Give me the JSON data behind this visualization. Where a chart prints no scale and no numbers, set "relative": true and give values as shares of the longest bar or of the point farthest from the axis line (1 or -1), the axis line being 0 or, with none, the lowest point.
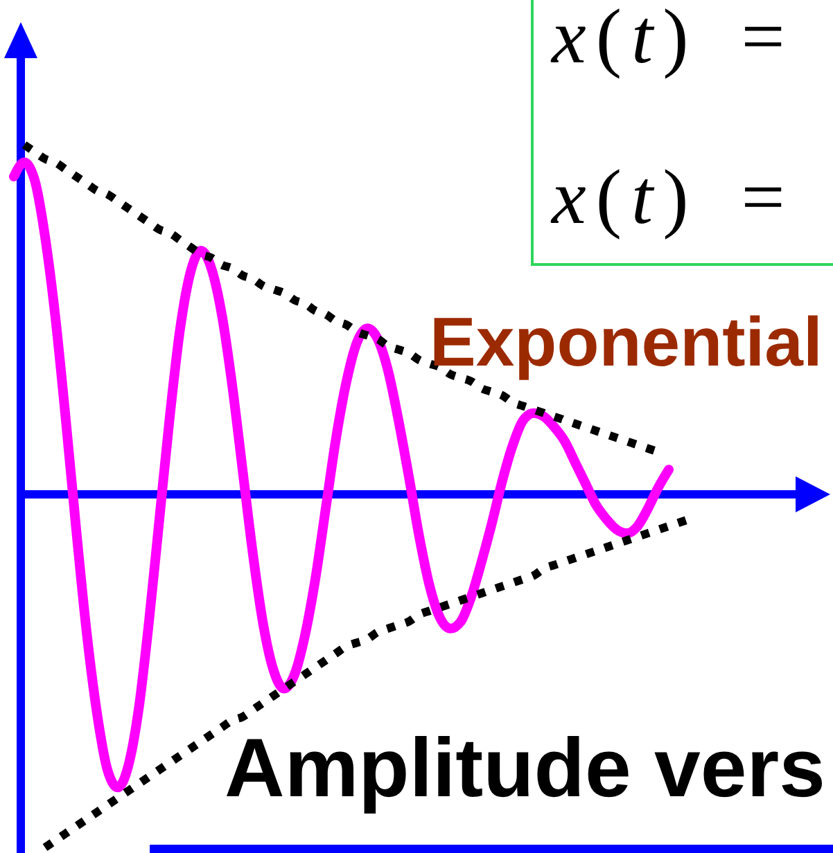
{
  "chart_data": {
    "type": "line",
    "relative": true,
    "categories": [
      null,
      null,
      null,
      null,
      null,
      null,
      null,
      null,
      null,
      null,
      null,
      null,
      null,
      null,
      null,
      null,
      null,
      null,
      null,
      null,
      null,
      null,
      null,
      null,
      null,
      null,
      null,
      null,
      null,
      null,
      null,
      null,
      null,
      null,
      null,
      null,
      null,
      null,
      null,
      null,
      null,
      null,
      null,
      null,
      null,
      null,
      null,
      null,
      null,
      null,
      null,
      null,
      null,
      null,
      null,
      null,
      null,
      null,
      null,
      null,
      null,
      null,
      null,
      null,
      null,
      null
    ],
    "series": [
      {
        "color": "#ff00ff",
        "values": [
          0.9,
          0.94,
          0.89,
          0.73,
          0.5,
          0.21,
          -0.1,
          -0.39,
          -0.62,
          -0.78,
          -0.83,
          -0.77,
          -0.61,
          -0.36,
          -0.07,
          0.22,
          0.47,
          0.63,
          0.69,
          0.64,
          0.51,
          0.31,
          0.07,
          -0.17,
          -0.37,
          -0.5,
          -0.55,
          -0.51,
          -0.4,
          -0.24,
          -0.04,
          0.16,
          0.32,
          0.43,
          0.47,
          0.44,
          0.35,
          0.21,
          0.05,
          -0.12,
          -0.26,
          -0.35,
          -0.38,
          -0.36,
          -0.29,
          -0.19,
          -0.08,
          0.04,
          0.14,
          0.21,
          0.23,
          0.22,
          0.19,
          0.15,
          0.09,
          0.03,
          -0.03,
          -0.07,
          -0.1,
          -0.11,
          -0.09,
          -0.04,
          0.02,
          0.07,
          null,
          null
        ]
      },
      {
        "color": "#000000",
        "line_style": "dotted",
        "values": [
          null,
          0.99,
          0.97,
          0.95,
          0.94,
          0.92,
          0.9,
          0.88,
          0.86,
          0.85,
          0.83,
          0.81,
          0.79,
          0.77,
          0.75,
          0.74,
          0.72,
          0.7,
          0.68,
          0.67,
          0.65,
          0.64,
          0.62,
          0.61,
          0.59,
          0.58,
          0.57,
          0.55,
          0.54,
          0.52,
          0.51,
          0.49,
          0.48,
          0.46,
          0.45,
          0.44,
          0.42,
          0.41,
          0.4,
          0.38,
          0.37,
          0.36,
          0.34,
          0.33,
          0.32,
          0.3,
          0.29,
          0.28,
          0.26,
          0.25,
          0.24,
          0.23,
          0.22,
          0.21,
          0.2,
          0.19,
          0.18,
          0.17,
          0.16,
          0.15,
          0.14,
          0.13,
          0.12,
          null,
          null,
          null
        ]
      },
      {
        "color": "#000000",
        "line_style": "dotted",
        "values": [
          null,
          null,
          null,
          -1.0,
          -0.98,
          -0.96,
          -0.94,
          -0.92,
          -0.9,
          -0.88,
          -0.86,
          -0.84,
          -0.82,
          -0.8,
          -0.78,
          -0.76,
          -0.74,
          -0.72,
          -0.7,
          -0.68,
          -0.66,
          -0.64,
          -0.63,
          -0.61,
          -0.59,
          -0.57,
          -0.55,
          -0.53,
          -0.51,
          -0.49,
          -0.47,
          -0.45,
          -0.43,
          -0.42,
          -0.41,
          -0.39,
          -0.38,
          -0.37,
          -0.36,
          -0.34,
          -0.33,
          -0.32,
          -0.31,
          -0.3,
          -0.29,
          -0.28,
          -0.27,
          -0.26,
          -0.25,
          -0.24,
          -0.23,
          -0.21,
          -0.2,
          -0.19,
          -0.18,
          -0.17,
          -0.16,
          -0.15,
          -0.14,
          -0.13,
          -0.12,
          -0.11,
          -0.1,
          -0.09,
          -0.08,
          -0.07
        ]
      }
    ],
    "ref_lines": [
      {
        "axis": "y",
        "value": 0,
        "color": "#0000ff"
      }
    ],
    "annotations": [
      "x(t) =",
      "x(t) =",
      "Exponential",
      "Amplitude vers"
    ]
  }
}
